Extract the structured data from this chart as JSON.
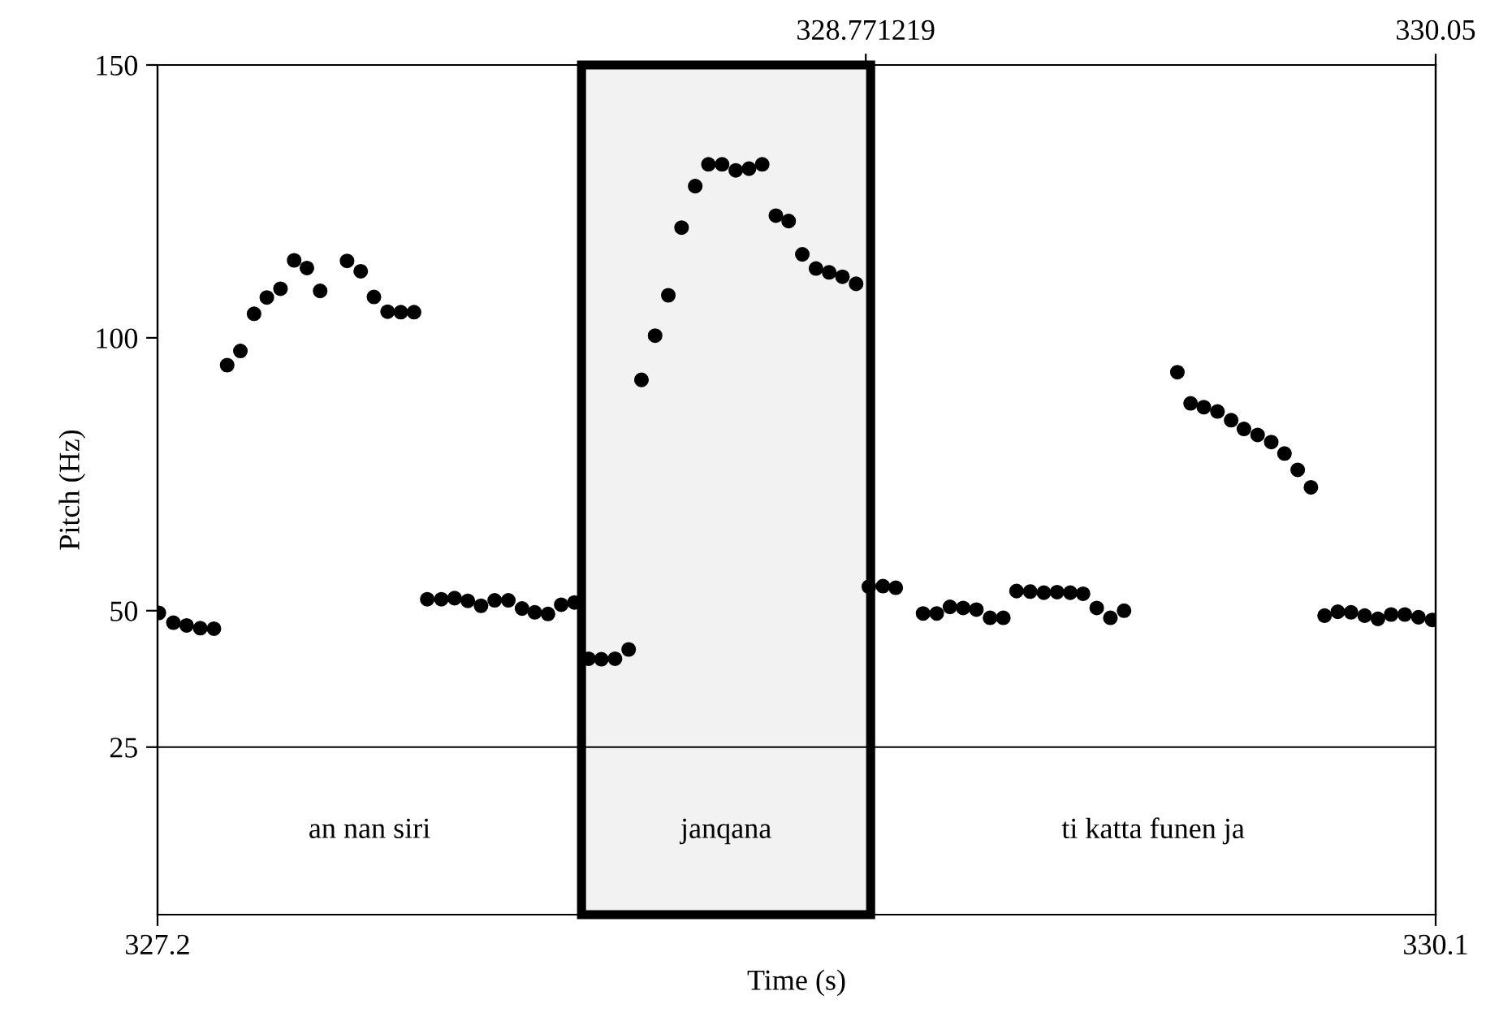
{
  "chart_data": {
    "type": "scatter",
    "xlabel": "Time (s)",
    "ylabel": "Pitch (Hz)",
    "xlim": [
      327.2,
      330.1
    ],
    "xticks": [
      327.2,
      330.1
    ],
    "x2lim": [
      327.182,
      330.05
    ],
    "x2ticks": [
      328.771219,
      330.05
    ],
    "ylim": [
      -5.7,
      150
    ],
    "yticks": [
      25,
      50,
      100,
      150
    ],
    "grid": false,
    "marker": "circle",
    "series": [
      {
        "color": "#000000",
        "x": [
          327.203,
          327.236,
          327.266,
          327.297,
          327.328,
          327.358,
          327.388,
          327.419,
          327.448,
          327.479,
          327.51,
          327.539,
          327.569,
          327.63,
          327.661,
          327.691,
          327.722,
          327.752,
          327.782,
          327.812,
          327.844,
          327.874,
          327.904,
          327.934,
          327.965,
          327.996,
          328.027,
          328.056,
          328.086,
          328.116,
          328.146,
          328.178,
          328.207,
          328.238,
          328.269,
          328.298,
          328.329,
          328.359,
          328.389,
          328.42,
          328.45,
          328.481,
          328.512,
          328.542,
          328.572,
          328.603,
          328.632,
          328.663,
          328.694,
          328.724,
          328.754,
          328.785,
          328.814,
          328.846,
          328.875,
          328.937,
          328.968,
          328.998,
          329.028,
          329.058,
          329.089,
          329.119,
          329.149,
          329.18,
          329.211,
          329.241,
          329.271,
          329.3,
          329.331,
          329.362,
          329.393,
          329.514,
          329.544,
          329.574,
          329.605,
          329.636,
          329.665,
          329.696,
          329.727,
          329.757,
          329.787,
          329.817,
          329.848,
          329.878,
          329.908,
          329.939,
          329.969,
          329.999,
          330.03,
          330.061,
          330.092
        ],
        "values": [
          49.6,
          47.8,
          47.3,
          46.8,
          46.7,
          95.0,
          97.6,
          104.4,
          107.4,
          109.0,
          114.2,
          112.8,
          108.6,
          114.1,
          112.2,
          107.5,
          104.8,
          104.7,
          104.7,
          52.1,
          52.1,
          52.3,
          51.8,
          50.9,
          51.9,
          51.9,
          50.4,
          49.7,
          49.4,
          51.1,
          51.5,
          41.2,
          41.1,
          41.2,
          42.9,
          92.3,
          100.4,
          107.8,
          120.2,
          127.8,
          131.8,
          131.8,
          130.7,
          131.0,
          131.8,
          122.4,
          121.4,
          115.3,
          112.7,
          112.0,
          111.2,
          109.9,
          54.4,
          54.5,
          54.2,
          49.5,
          49.5,
          50.7,
          50.5,
          50.2,
          48.7,
          48.7,
          53.6,
          53.5,
          53.3,
          53.4,
          53.3,
          53.1,
          50.5,
          48.7,
          50.0,
          93.7,
          88.0,
          87.3,
          86.5,
          84.9,
          83.3,
          82.2,
          80.9,
          78.8,
          75.8,
          72.6,
          49.1,
          49.8,
          49.7,
          49.1,
          48.5,
          49.3,
          49.3,
          48.8,
          48.3
        ]
      }
    ],
    "ref_lines": [
      {
        "axis": "y",
        "value": 25,
        "color": "#000000"
      }
    ],
    "bands": [
      {
        "axis": "x",
        "from": 328.162,
        "to": 328.818,
        "color": "#000000"
      }
    ],
    "annotations": [
      "an nan siri",
      "janqana",
      "ti katta funen ja"
    ]
  }
}
